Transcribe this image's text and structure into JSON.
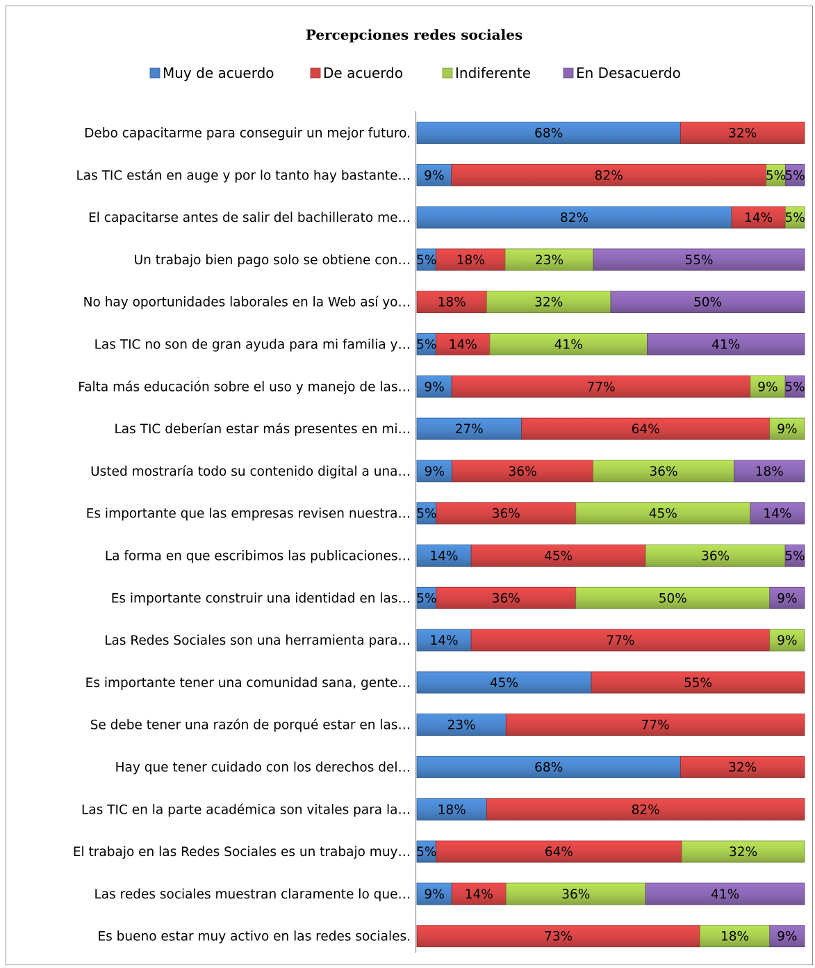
{
  "chart_data": {
    "type": "bar",
    "orientation": "horizontal",
    "stacked": "percent",
    "title": "Percepciones redes sociales",
    "legend_position": "top",
    "grid": false,
    "xlim": [
      0,
      100
    ],
    "colors": {
      "Muy de acuerdo": "#4a86cc",
      "De acuerdo": "#d64545",
      "Indiferente": "#a6cc4f",
      "En Desacuerdo": "#8b67b3"
    },
    "categories": [
      "Debo capacitarme para conseguir un mejor futuro.",
      "Las TIC están en auge y por lo tanto hay bastante…",
      "El capacitarse antes de salir del bachillerato me…",
      "Un trabajo bien pago solo se obtiene con…",
      "No hay oportunidades laborales en la Web así yo…",
      "Las TIC no son de gran ayuda para mi familia y…",
      "Falta más educación sobre el uso y manejo de las…",
      "Las TIC deberían estar más presentes en mi…",
      "Usted mostraría todo su contenido digital a una…",
      "Es importante que las empresas revisen nuestra…",
      "La forma en que escribimos las publicaciones…",
      "Es importante construir una identidad en las…",
      "Las Redes Sociales son una herramienta para…",
      "Es importante tener una comunidad sana, gente…",
      "Se debe tener una razón de porqué estar en las…",
      "Hay que tener cuidado con los derechos del…",
      "Las TIC en la parte académica son vitales para la…",
      "El trabajo en las Redes Sociales es un trabajo muy…",
      "Las redes sociales muestran claramente lo que…",
      "Es bueno estar muy activo en las redes sociales."
    ],
    "series": [
      {
        "name": "Muy de acuerdo",
        "values": [
          68,
          9,
          82,
          5,
          0,
          5,
          9,
          27,
          9,
          5,
          14,
          5,
          14,
          45,
          23,
          68,
          18,
          5,
          9,
          0
        ]
      },
      {
        "name": "De acuerdo",
        "values": [
          32,
          82,
          14,
          18,
          18,
          14,
          77,
          64,
          36,
          36,
          45,
          36,
          77,
          55,
          77,
          32,
          82,
          64,
          14,
          73
        ]
      },
      {
        "name": "Indiferente",
        "values": [
          0,
          5,
          5,
          23,
          32,
          41,
          9,
          9,
          36,
          45,
          36,
          50,
          9,
          0,
          0,
          0,
          0,
          32,
          36,
          18
        ]
      },
      {
        "name": "En Desacuerdo",
        "values": [
          0,
          5,
          0,
          55,
          50,
          41,
          5,
          0,
          18,
          14,
          5,
          9,
          0,
          0,
          0,
          0,
          0,
          0,
          41,
          9
        ]
      }
    ],
    "value_suffix": "%"
  }
}
